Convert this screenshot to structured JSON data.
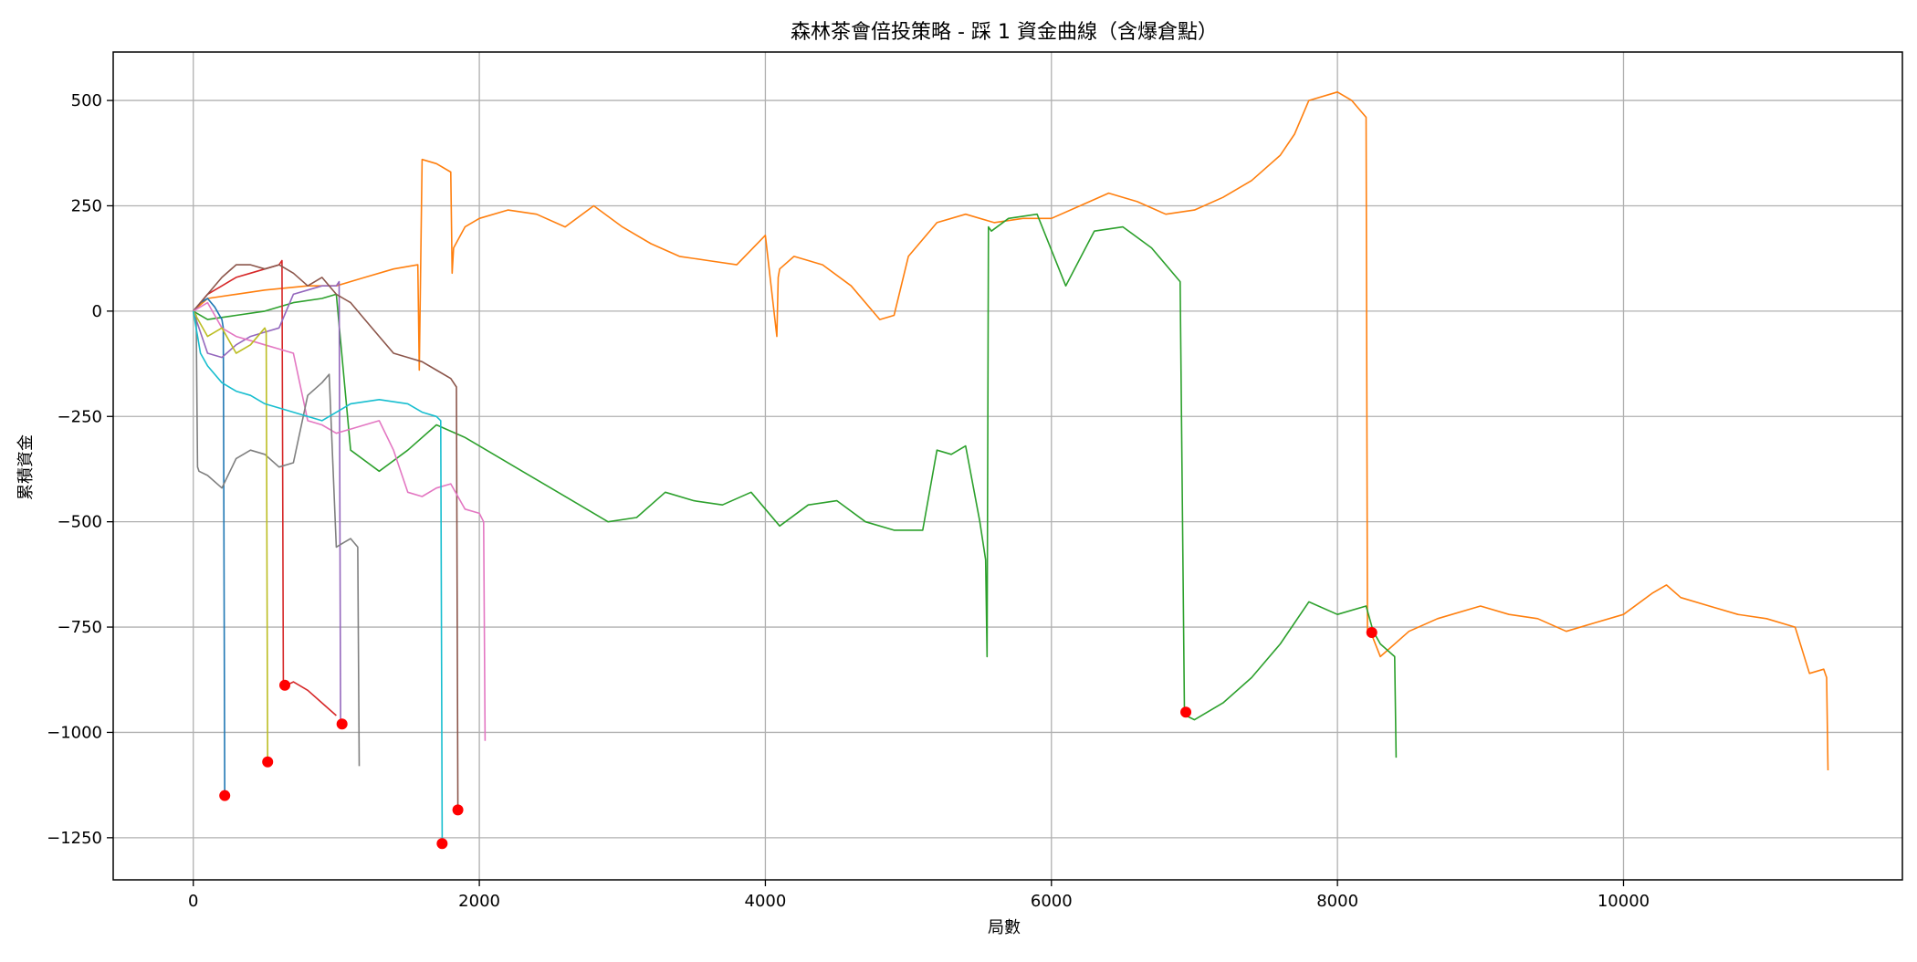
{
  "chart_data": {
    "type": "line",
    "title": "森林茶會倍投策略 - 踩 1 資金曲線（含爆倉點）",
    "xlabel": "局數",
    "ylabel": "累積資金",
    "xlim": [
      -560,
      11950
    ],
    "ylim": [
      -1350,
      615
    ],
    "xticks": [
      0,
      2000,
      4000,
      6000,
      8000,
      10000
    ],
    "yticks": [
      -1250,
      -1000,
      -750,
      -500,
      -250,
      0,
      250,
      500
    ],
    "grid": true,
    "series": [
      {
        "color": "#ff7f0e",
        "x": [
          0,
          100,
          300,
          500,
          800,
          1000,
          1200,
          1400,
          1570,
          1580,
          1600,
          1700,
          1800,
          1810,
          1820,
          1900,
          2000,
          2200,
          2400,
          2600,
          2800,
          3000,
          3200,
          3400,
          3600,
          3800,
          4000,
          4080,
          4090,
          4100,
          4200,
          4400,
          4600,
          4800,
          4900,
          5000,
          5200,
          5400,
          5600,
          5800,
          6000,
          6200,
          6400,
          6600,
          6800,
          7000,
          7200,
          7400,
          7600,
          7700,
          7800,
          8000,
          8100,
          8200,
          8210,
          8230,
          8300,
          8500,
          8700,
          9000,
          9200,
          9400,
          9600,
          9800,
          10000,
          10200,
          10300,
          10400,
          10600,
          10800,
          11000,
          11200,
          11300,
          11400,
          11420,
          11430
        ],
        "y": [
          0,
          30,
          40,
          50,
          60,
          60,
          80,
          100,
          110,
          -140,
          360,
          350,
          330,
          90,
          150,
          200,
          220,
          240,
          230,
          200,
          250,
          200,
          160,
          130,
          120,
          110,
          180,
          -60,
          80,
          100,
          130,
          110,
          60,
          -20,
          -10,
          130,
          210,
          230,
          210,
          220,
          220,
          250,
          280,
          260,
          230,
          240,
          270,
          310,
          370,
          420,
          500,
          520,
          500,
          460,
          -760,
          -760,
          -820,
          -760,
          -730,
          -700,
          -720,
          -730,
          -760,
          -740,
          -720,
          -670,
          -650,
          -680,
          -700,
          -720,
          -730,
          -750,
          -860,
          -850,
          -870,
          -1090
        ]
      },
      {
        "color": "#2ca02c",
        "x": [
          0,
          100,
          300,
          500,
          700,
          900,
          1000,
          1100,
          1300,
          1500,
          1700,
          1900,
          2100,
          2300,
          2500,
          2700,
          2900,
          3100,
          3300,
          3500,
          3700,
          3900,
          4100,
          4300,
          4500,
          4700,
          4900,
          5100,
          5200,
          5300,
          5400,
          5500,
          5540,
          5550,
          5560,
          5580,
          5700,
          5900,
          6100,
          6300,
          6500,
          6700,
          6900,
          6930,
          6940,
          7000,
          7200,
          7400,
          7600,
          7800,
          8000,
          8200,
          8250,
          8300,
          8400,
          8410
        ],
        "y": [
          0,
          -20,
          -10,
          0,
          20,
          30,
          40,
          -330,
          -380,
          -330,
          -270,
          -300,
          -340,
          -380,
          -420,
          -460,
          -500,
          -490,
          -430,
          -450,
          -460,
          -430,
          -510,
          -460,
          -450,
          -500,
          -520,
          -520,
          -330,
          -340,
          -320,
          -500,
          -590,
          -820,
          200,
          190,
          220,
          230,
          60,
          190,
          200,
          150,
          70,
          -950,
          -960,
          -970,
          -930,
          -870,
          -790,
          -690,
          -720,
          -700,
          -760,
          -790,
          -820,
          -1060
        ]
      },
      {
        "color": "#d62728",
        "x": [
          0,
          100,
          200,
          300,
          400,
          500,
          600,
          620,
          630,
          640,
          700,
          800,
          900,
          1000
        ],
        "y": [
          0,
          40,
          60,
          80,
          90,
          100,
          110,
          120,
          -880,
          -890,
          -880,
          -900,
          -930,
          -960
        ]
      },
      {
        "color": "#1f77b4",
        "x": [
          0,
          50,
          100,
          150,
          200,
          210,
          220
        ],
        "y": [
          0,
          20,
          30,
          10,
          -20,
          -40,
          -1150
        ]
      },
      {
        "color": "#9467bd",
        "x": [
          0,
          100,
          200,
          300,
          400,
          500,
          600,
          700,
          800,
          900,
          1000,
          1020,
          1030
        ],
        "y": [
          0,
          -100,
          -110,
          -80,
          -60,
          -50,
          -40,
          40,
          50,
          60,
          60,
          70,
          -980
        ]
      },
      {
        "color": "#8c564b",
        "x": [
          0,
          100,
          200,
          300,
          400,
          500,
          600,
          700,
          800,
          900,
          1000,
          1100,
          1200,
          1300,
          1400,
          1500,
          1600,
          1700,
          1800,
          1840,
          1850
        ],
        "y": [
          0,
          40,
          80,
          110,
          110,
          100,
          110,
          90,
          60,
          80,
          40,
          20,
          -20,
          -60,
          -100,
          -110,
          -120,
          -140,
          -160,
          -180,
          -1180
        ]
      },
      {
        "color": "#e377c2",
        "x": [
          0,
          100,
          200,
          300,
          400,
          500,
          600,
          700,
          800,
          900,
          1000,
          1100,
          1200,
          1300,
          1400,
          1500,
          1600,
          1700,
          1800,
          1900,
          2000,
          2030,
          2040
        ],
        "y": [
          0,
          20,
          -40,
          -60,
          -70,
          -80,
          -90,
          -100,
          -260,
          -270,
          -290,
          -280,
          -270,
          -260,
          -330,
          -430,
          -440,
          -420,
          -410,
          -470,
          -480,
          -500,
          -1020
        ]
      },
      {
        "color": "#7f7f7f",
        "x": [
          0,
          20,
          30,
          40,
          100,
          200,
          300,
          400,
          500,
          600,
          700,
          800,
          900,
          950,
          1000,
          1050,
          1100,
          1150,
          1160
        ],
        "y": [
          0,
          -10,
          -370,
          -380,
          -390,
          -420,
          -350,
          -330,
          -340,
          -370,
          -360,
          -200,
          -170,
          -150,
          -560,
          -550,
          -540,
          -560,
          -1080
        ]
      },
      {
        "color": "#bcbd22",
        "x": [
          0,
          100,
          200,
          300,
          400,
          500,
          510,
          520
        ],
        "y": [
          0,
          -60,
          -40,
          -100,
          -80,
          -40,
          -50,
          -1070
        ]
      },
      {
        "color": "#17becf",
        "x": [
          0,
          50,
          100,
          200,
          300,
          400,
          500,
          700,
          900,
          1100,
          1300,
          1500,
          1600,
          1700,
          1730,
          1740
        ],
        "y": [
          0,
          -100,
          -130,
          -170,
          -190,
          -200,
          -220,
          -240,
          -260,
          -220,
          -210,
          -220,
          -240,
          -250,
          -260,
          -1260
        ]
      }
    ],
    "blowup_points": {
      "color": "#ff0000",
      "x": [
        220,
        520,
        640,
        1040,
        1740,
        1850,
        6940,
        8240
      ],
      "y": [
        -1150,
        -1070,
        -888,
        -980,
        -1264,
        -1184,
        -952,
        -763
      ]
    }
  }
}
